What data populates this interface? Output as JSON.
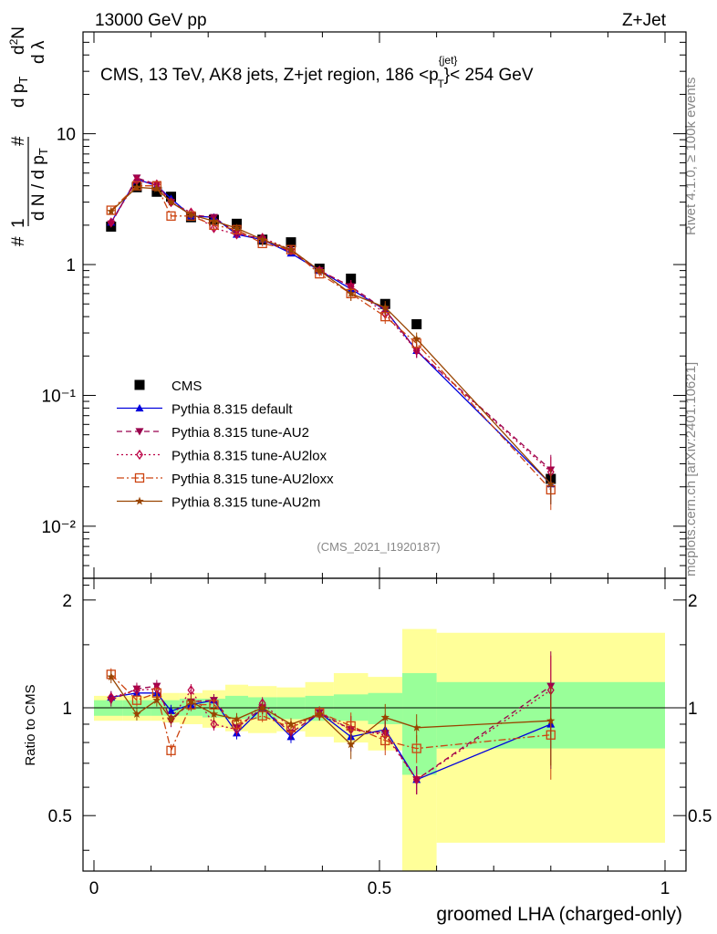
{
  "header": {
    "energy": "13000 GeV pp",
    "process": "Z+Jet",
    "plot_title": "CMS, 13 TeV, AK8 jets, Z+jet region, 186 <p",
    "plot_title_sup": "{jet}",
    "plot_title_sub": "T",
    "plot_title_end": "}< 254 GeV",
    "analysis_id": "(CMS_2021_I1920187)"
  },
  "side_text": {
    "rivet": "Rivet 4.1.0, ≥ 100k events",
    "mcplots": "mcplots.cern.ch [arXiv:2401.10621]"
  },
  "colors": {
    "cms": "#000000",
    "default": "#0000dd",
    "au2": "#99004d",
    "au2lox": "#bb0044",
    "au2loxx": "#cc4411",
    "au2m": "#994400",
    "band_inner": "#99ff99",
    "band_outer": "#ffff99"
  },
  "chart_data": {
    "type": "scatter",
    "xlabel": "groomed LHA (charged-only)",
    "ylabel_main": "#frac{1}{dN/dp_T} #frac{d^2N}{dp_T dλ}",
    "ylabel_ratio": "Ratio to CMS",
    "xlim": [
      0,
      1
    ],
    "ylim_main": [
      0.004,
      60
    ],
    "ylim_ratio": [
      0.35,
      2.3
    ],
    "x_ticks": [
      "0",
      "0.5",
      "1"
    ],
    "y_ticks_main": [
      "10⁻²",
      "10⁻¹",
      "1",
      "10"
    ],
    "y_ticks_ratio": [
      "0.5",
      "1",
      "2"
    ],
    "x_centers": [
      0.03,
      0.075,
      0.11,
      0.135,
      0.17,
      0.21,
      0.25,
      0.295,
      0.345,
      0.395,
      0.45,
      0.51,
      0.565,
      0.8
    ],
    "x_edges": [
      0,
      0.05,
      0.1,
      0.12,
      0.15,
      0.19,
      0.23,
      0.27,
      0.32,
      0.37,
      0.42,
      0.48,
      0.54,
      0.6,
      1.0
    ],
    "band_inner": [
      [
        0.95,
        1.05
      ],
      [
        0.95,
        1.05
      ],
      [
        0.95,
        1.05
      ],
      [
        0.95,
        1.05
      ],
      [
        0.95,
        1.06
      ],
      [
        0.94,
        1.06
      ],
      [
        0.93,
        1.08
      ],
      [
        0.93,
        1.07
      ],
      [
        0.93,
        1.07
      ],
      [
        0.92,
        1.08
      ],
      [
        0.92,
        1.09
      ],
      [
        0.9,
        1.1
      ],
      [
        0.65,
        1.25
      ],
      [
        0.77,
        1.18
      ]
    ],
    "band_outer": [
      [
        0.92,
        1.08
      ],
      [
        0.92,
        1.08
      ],
      [
        0.92,
        1.09
      ],
      [
        0.91,
        1.1
      ],
      [
        0.9,
        1.1
      ],
      [
        0.88,
        1.12
      ],
      [
        0.86,
        1.16
      ],
      [
        0.85,
        1.15
      ],
      [
        0.86,
        1.14
      ],
      [
        0.83,
        1.18
      ],
      [
        0.8,
        1.25
      ],
      [
        0.76,
        1.22
      ],
      [
        0.35,
        1.66
      ],
      [
        0.42,
        1.62
      ]
    ],
    "legend": [
      "CMS",
      "Pythia 8.315 default",
      "Pythia 8.315 tune-AU2",
      "Pythia 8.315 tune-AU2lox",
      "Pythia 8.315 tune-AU2loxx",
      "Pythia 8.315 tune-AU2m"
    ],
    "series": [
      {
        "name": "CMS",
        "key": "cms",
        "marker": "square",
        "line": "none",
        "values": [
          1.95,
          3.9,
          3.6,
          3.3,
          2.3,
          2.2,
          2.05,
          1.55,
          1.48,
          0.93,
          0.78,
          0.5,
          0.35,
          0.023
        ]
      },
      {
        "name": "Pythia 8.315 default",
        "key": "default",
        "marker": "triangle-up",
        "line": "solid",
        "values": [
          2.1,
          4.5,
          4.0,
          3.2,
          2.35,
          2.3,
          1.7,
          1.55,
          1.22,
          0.9,
          0.65,
          0.45,
          0.22,
          0.021
        ],
        "ratio": [
          1.07,
          1.1,
          1.1,
          0.98,
          1.02,
          1.05,
          0.85,
          1.0,
          0.83,
          0.97,
          0.83,
          0.87,
          0.63,
          0.9
        ]
      },
      {
        "name": "Pythia 8.315 tune-AU2",
        "key": "au2",
        "marker": "triangle-down",
        "line": "dashed",
        "values": [
          2.05,
          4.6,
          4.1,
          3.0,
          2.4,
          2.3,
          1.75,
          1.55,
          1.25,
          0.9,
          0.68,
          0.45,
          0.22,
          0.027
        ],
        "ratio": [
          1.05,
          1.13,
          1.15,
          0.92,
          1.04,
          1.05,
          0.88,
          1.0,
          0.85,
          0.97,
          0.87,
          0.85,
          0.63,
          1.15
        ]
      },
      {
        "name": "Pythia 8.315 tune-AU2lox",
        "key": "au2lox",
        "marker": "diamond",
        "line": "dotted",
        "values": [
          2.1,
          4.4,
          4.1,
          3.0,
          2.5,
          1.9,
          1.7,
          1.6,
          1.3,
          0.9,
          0.68,
          0.42,
          0.22,
          0.026
        ],
        "ratio": [
          1.07,
          1.12,
          1.13,
          0.93,
          1.12,
          0.9,
          0.87,
          1.03,
          0.88,
          0.96,
          0.87,
          0.84,
          0.63,
          1.12
        ]
      },
      {
        "name": "Pythia 8.315 tune-AU2loxx",
        "key": "au2loxx",
        "marker": "open-square",
        "line": "dashdot",
        "values": [
          2.6,
          4.0,
          4.0,
          2.35,
          2.35,
          2.0,
          1.85,
          1.45,
          1.3,
          0.85,
          0.6,
          0.4,
          0.25,
          0.019
        ],
        "ratio": [
          1.24,
          1.05,
          1.1,
          0.76,
          1.02,
          1.02,
          0.9,
          0.95,
          0.88,
          0.97,
          0.89,
          0.81,
          0.77,
          0.84
        ]
      },
      {
        "name": "Pythia 8.315 tune-AU2m",
        "key": "au2m",
        "marker": "star",
        "line": "solid",
        "values": [
          2.55,
          3.9,
          3.8,
          3.0,
          2.4,
          2.15,
          1.9,
          1.55,
          1.3,
          0.9,
          0.6,
          0.47,
          0.27,
          0.021
        ],
        "ratio": [
          1.22,
          0.96,
          1.05,
          0.93,
          1.04,
          0.96,
          0.93,
          1.0,
          0.9,
          0.96,
          0.79,
          0.94,
          0.88,
          0.92
        ]
      }
    ]
  }
}
